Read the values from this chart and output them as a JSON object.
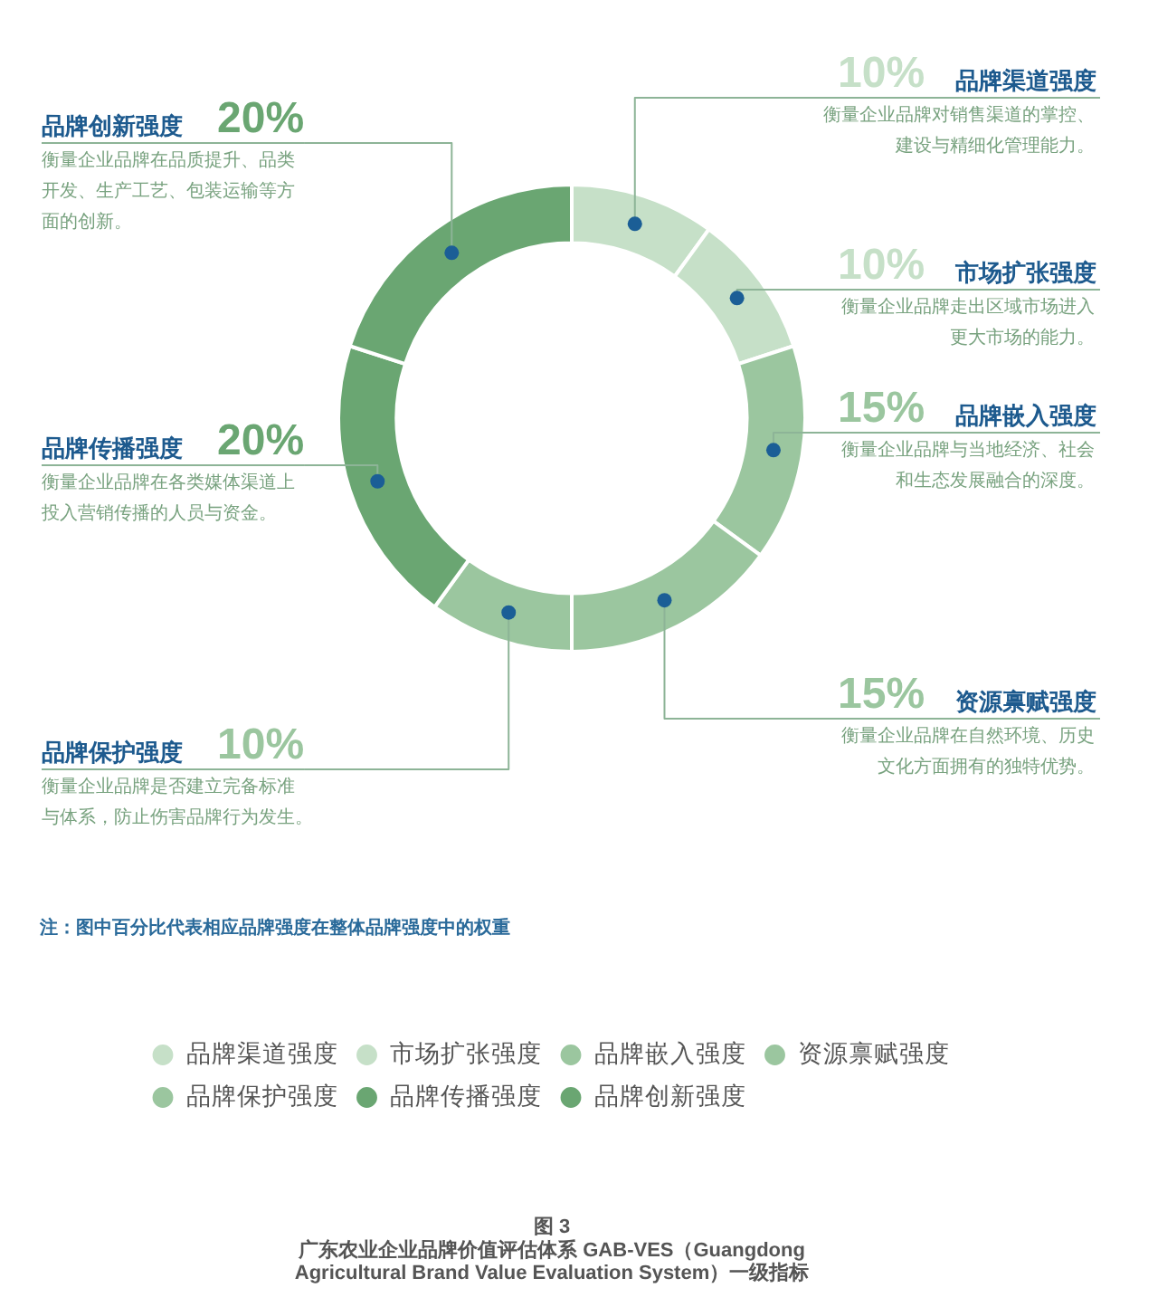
{
  "chart_data": {
    "type": "donut",
    "title": "图 3",
    "subtitle": "广东农业企业品牌价值评估体系 GAB-VES（Guangdong Agricultural Brand Value Evaluation System）一级指标",
    "categories": [
      "品牌渠道强度",
      "市场扩张强度",
      "品牌嵌入强度",
      "资源禀赋强度",
      "品牌保护强度",
      "品牌传播强度",
      "品牌创新强度"
    ],
    "values": [
      10,
      10,
      15,
      15,
      10,
      20,
      20
    ],
    "colors": [
      "#c6e0c8",
      "#c6e0c8",
      "#9bc69f",
      "#9bc69f",
      "#9bc69f",
      "#6aa672",
      "#6aa672"
    ],
    "value_labels": [
      "10%",
      "10%",
      "15%",
      "15%",
      "10%",
      "20%",
      "20%"
    ],
    "legend": "bottom",
    "annotations": [
      {
        "text": "衡量企业品牌对销售渠道的掌控、建设与精细化管理能力。",
        "x": "品牌渠道强度"
      },
      {
        "text": "衡量企业品牌走出区域市场进入更大市场的能力。",
        "x": "市场扩张强度"
      },
      {
        "text": "衡量企业品牌与当地经济、社会和生态发展融合的深度。",
        "x": "品牌嵌入强度"
      },
      {
        "text": "衡量企业品牌在自然环境、历史文化方面拥有的独特优势。",
        "x": "资源禀赋强度"
      },
      {
        "text": "衡量企业品牌是否建立完备标准与体系，防止伤害品牌行为发生。",
        "x": "品牌保护强度"
      },
      {
        "text": "衡量企业品牌在各类媒体渠道上投入营销传播的人员与资金。",
        "x": "品牌传播强度"
      },
      {
        "text": "衡量企业品牌在品质提升、品类开发、生产工艺、包装运输等方面的创新。",
        "x": "品牌创新强度"
      },
      "注：图中百分比代表相应品牌强度在整体品牌强度中的权重"
    ]
  }
}
